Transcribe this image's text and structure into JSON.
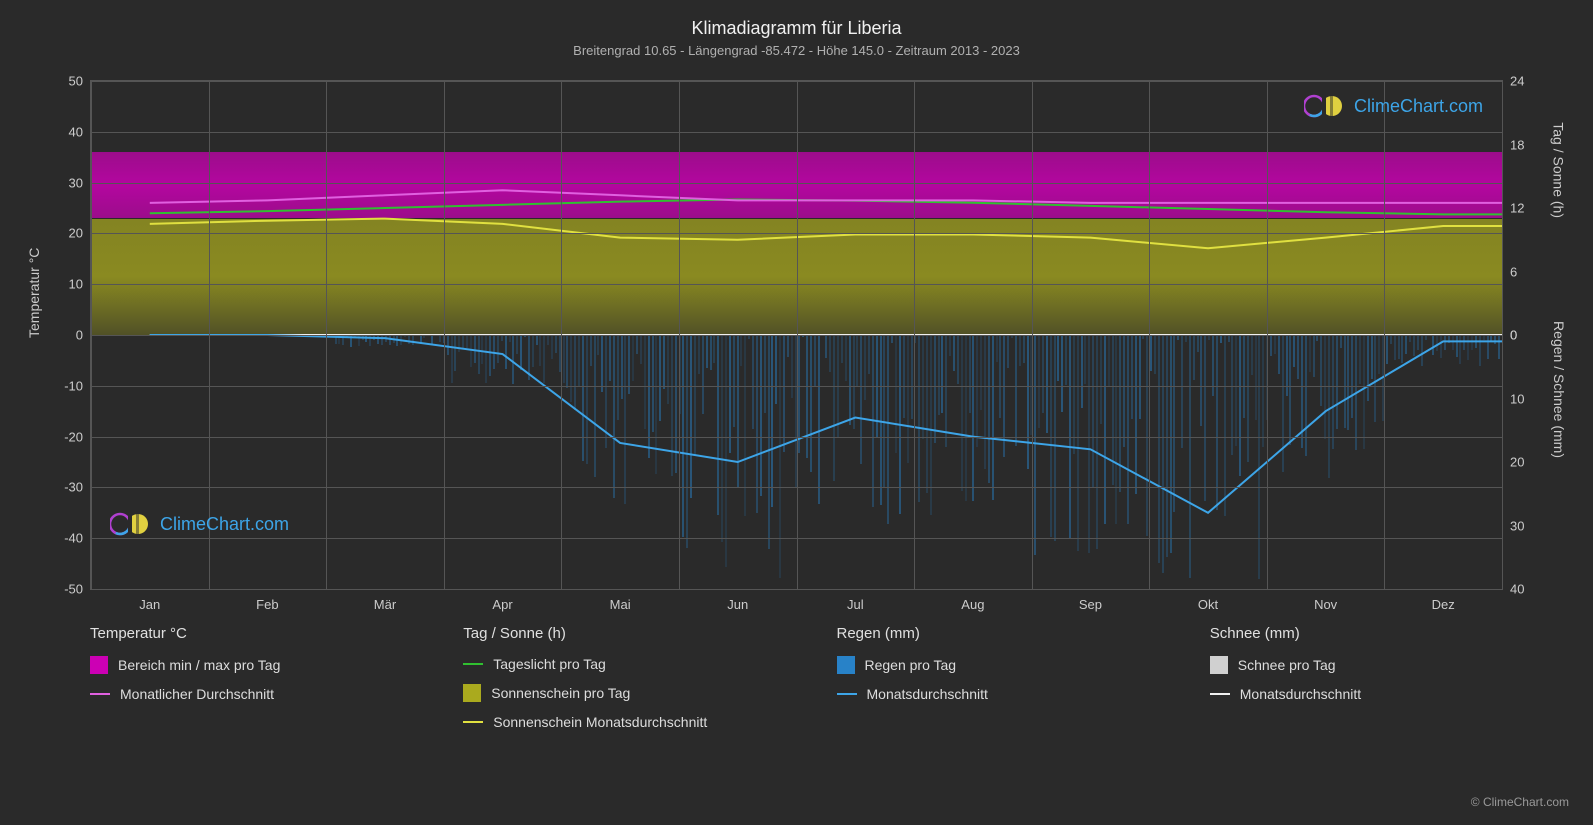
{
  "title": "Klimadiagramm für Liberia",
  "subtitle": "Breitengrad 10.65 - Längengrad -85.472 - Höhe 145.0 - Zeitraum 2013 - 2023",
  "background_color": "#2a2a2a",
  "grid_color": "#555555",
  "text_color": "#e0e0e0",
  "plot": {
    "left_axis": {
      "title": "Temperatur °C",
      "min": -50,
      "max": 50,
      "step": 10,
      "ticks": [
        -50,
        -40,
        -30,
        -20,
        -10,
        0,
        10,
        20,
        30,
        40,
        50
      ]
    },
    "right_axis_top": {
      "title": "Tag / Sonne (h)",
      "min": 0,
      "max": 24,
      "step": 6,
      "ticks": [
        0,
        6,
        12,
        18,
        24
      ]
    },
    "right_axis_bot": {
      "title": "Regen / Schnee (mm)",
      "min": 0,
      "max": 40,
      "step": 10,
      "ticks": [
        0,
        10,
        20,
        30,
        40
      ]
    },
    "x_axis": {
      "labels": [
        "Jan",
        "Feb",
        "Mär",
        "Apr",
        "Mai",
        "Jun",
        "Jul",
        "Aug",
        "Sep",
        "Okt",
        "Nov",
        "Dez"
      ]
    },
    "temperature_band": {
      "color": "#cc00b4",
      "top_c": 36,
      "bottom_c": 23
    },
    "sunshine_band": {
      "color": "#aaaa1e",
      "top_h": 11,
      "bottom_h": 0
    },
    "rain_band": {
      "color": "#2882c8",
      "top_mm": 0,
      "bottom_mm_values": [
        0,
        0,
        2,
        8,
        28,
        40,
        30,
        30,
        35,
        40,
        25,
        5
      ]
    },
    "lines": {
      "daylight": {
        "color": "#30c030",
        "width": 2,
        "values_h": [
          11.5,
          11.7,
          12.0,
          12.3,
          12.6,
          12.8,
          12.7,
          12.5,
          12.2,
          11.9,
          11.6,
          11.4
        ]
      },
      "sunshine_avg": {
        "color": "#e0e040",
        "width": 2,
        "values_h": [
          10.5,
          10.8,
          11.0,
          10.5,
          9.2,
          9.0,
          9.5,
          9.5,
          9.2,
          8.2,
          9.2,
          10.3
        ]
      },
      "temp_avg": {
        "color": "#e060e0",
        "width": 2,
        "values_c": [
          26,
          26.5,
          27.5,
          28.5,
          27.5,
          26.5,
          26.5,
          26.5,
          26,
          26,
          26,
          26
        ]
      },
      "rain_avg": {
        "color": "#3da5e8",
        "width": 2,
        "values_mm": [
          0,
          0,
          0.5,
          3,
          17,
          20,
          13,
          16,
          18,
          28,
          12,
          1
        ]
      },
      "snow_avg": {
        "color": "#f0f0f0",
        "width": 2,
        "values_mm": [
          0,
          0,
          0,
          0,
          0,
          0,
          0,
          0,
          0,
          0,
          0,
          0
        ]
      }
    }
  },
  "legend": {
    "col1": {
      "heading": "Temperatur °C",
      "items": [
        {
          "type": "swatch",
          "color": "#cc00b4",
          "label": "Bereich min / max pro Tag"
        },
        {
          "type": "line",
          "color": "#e060e0",
          "label": "Monatlicher Durchschnitt"
        }
      ]
    },
    "col2": {
      "heading": "Tag / Sonne (h)",
      "items": [
        {
          "type": "line",
          "color": "#30c030",
          "label": "Tageslicht pro Tag"
        },
        {
          "type": "swatch",
          "color": "#aaaa1e",
          "label": "Sonnenschein pro Tag"
        },
        {
          "type": "line",
          "color": "#e0e040",
          "label": "Sonnenschein Monatsdurchschnitt"
        }
      ]
    },
    "col3": {
      "heading": "Regen (mm)",
      "items": [
        {
          "type": "swatch",
          "color": "#2882c8",
          "label": "Regen pro Tag"
        },
        {
          "type": "line",
          "color": "#3da5e8",
          "label": "Monatsdurchschnitt"
        }
      ]
    },
    "col4": {
      "heading": "Schnee (mm)",
      "items": [
        {
          "type": "swatch",
          "color": "#d0d0d0",
          "label": "Schnee pro Tag"
        },
        {
          "type": "line",
          "color": "#f0f0f0",
          "label": "Monatsdurchschnitt"
        }
      ]
    }
  },
  "watermark_text": "ClimeChart.com",
  "copyright": "© ClimeChart.com"
}
